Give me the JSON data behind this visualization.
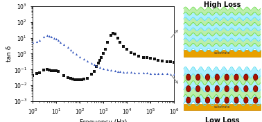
{
  "xlabel": "Frequency (Hz)",
  "ylabel": "tan δ",
  "xlim_log": [
    0,
    6
  ],
  "ylim_log": [
    -3,
    3
  ],
  "black_squares": {
    "color": "#111111",
    "marker": "s",
    "size": 5,
    "data": [
      [
        1.0,
        0.04
      ],
      [
        1.5,
        0.055
      ],
      [
        2.0,
        0.065
      ],
      [
        3.0,
        0.09
      ],
      [
        4.0,
        0.1
      ],
      [
        5.0,
        0.09
      ],
      [
        6.0,
        0.085
      ],
      [
        8.0,
        0.085
      ],
      [
        10.0,
        0.085
      ],
      [
        12.0,
        0.08
      ],
      [
        20.0,
        0.04
      ],
      [
        30.0,
        0.03
      ],
      [
        40.0,
        0.028
      ],
      [
        50.0,
        0.025
      ],
      [
        60.0,
        0.024
      ],
      [
        70.0,
        0.023
      ],
      [
        80.0,
        0.022
      ],
      [
        100.0,
        0.022
      ],
      [
        120.0,
        0.022
      ],
      [
        150.0,
        0.025
      ],
      [
        200.0,
        0.028
      ],
      [
        300.0,
        0.05
      ],
      [
        400.0,
        0.08
      ],
      [
        500.0,
        0.15
      ],
      [
        600.0,
        0.25
      ],
      [
        700.0,
        0.4
      ],
      [
        800.0,
        0.6
      ],
      [
        1000.0,
        1.0
      ],
      [
        1200.0,
        2.0
      ],
      [
        1500.0,
        5.0
      ],
      [
        2000.0,
        15.0
      ],
      [
        2500.0,
        20.0
      ],
      [
        3000.0,
        18.0
      ],
      [
        4000.0,
        10.0
      ],
      [
        5000.0,
        5.5
      ],
      [
        7000.0,
        3.0
      ],
      [
        10000.0,
        2.0
      ],
      [
        15000.0,
        1.2
      ],
      [
        20000.0,
        0.9
      ],
      [
        30000.0,
        0.7
      ],
      [
        50000.0,
        0.6
      ],
      [
        70000.0,
        0.55
      ],
      [
        100000.0,
        0.5
      ],
      [
        150000.0,
        0.45
      ],
      [
        200000.0,
        0.4
      ],
      [
        300000.0,
        0.35
      ],
      [
        500000.0,
        0.32
      ],
      [
        700000.0,
        0.3
      ],
      [
        1000000.0,
        0.28
      ]
    ]
  },
  "blue_triangles": {
    "color": "#3355bb",
    "marker": "^",
    "size": 5,
    "data": [
      [
        1.0,
        5.0
      ],
      [
        1.5,
        6.0
      ],
      [
        2.0,
        7.0
      ],
      [
        3.0,
        12.0
      ],
      [
        4.0,
        14.0
      ],
      [
        5.0,
        13.0
      ],
      [
        6.0,
        12.0
      ],
      [
        8.0,
        10.0
      ],
      [
        10.0,
        9.0
      ],
      [
        12.0,
        7.0
      ],
      [
        15.0,
        5.5
      ],
      [
        20.0,
        4.0
      ],
      [
        30.0,
        2.5
      ],
      [
        40.0,
        1.8
      ],
      [
        50.0,
        1.3
      ],
      [
        70.0,
        0.9
      ],
      [
        100.0,
        0.65
      ],
      [
        150.0,
        0.45
      ],
      [
        200.0,
        0.35
      ],
      [
        300.0,
        0.25
      ],
      [
        400.0,
        0.2
      ],
      [
        500.0,
        0.17
      ],
      [
        700.0,
        0.14
      ],
      [
        1000.0,
        0.12
      ],
      [
        1500.0,
        0.1
      ],
      [
        2000.0,
        0.09
      ],
      [
        3000.0,
        0.085
      ],
      [
        4000.0,
        0.08
      ],
      [
        5000.0,
        0.075
      ],
      [
        7000.0,
        0.072
      ],
      [
        10000.0,
        0.07
      ],
      [
        15000.0,
        0.068
      ],
      [
        20000.0,
        0.065
      ],
      [
        30000.0,
        0.063
      ],
      [
        50000.0,
        0.062
      ],
      [
        70000.0,
        0.06
      ],
      [
        100000.0,
        0.058
      ],
      [
        150000.0,
        0.057
      ],
      [
        200000.0,
        0.056
      ],
      [
        300000.0,
        0.055
      ],
      [
        500000.0,
        0.054
      ],
      [
        700000.0,
        0.053
      ],
      [
        1000000.0,
        0.052
      ]
    ]
  },
  "high_loss_label": "High Loss",
  "low_loss_label": "Low Loss",
  "substrate_color": "#E8A000",
  "substrate_edge": "#CC8800",
  "wave_cyan": "#55DDEE",
  "wave_green": "#66DD44",
  "wave_cyan_fill": "#AAEEFF",
  "wave_green_fill": "#BBEEAA",
  "particle_dark": "#5B0000",
  "particle_red": "#AA1100",
  "arrow_color": "#888888"
}
